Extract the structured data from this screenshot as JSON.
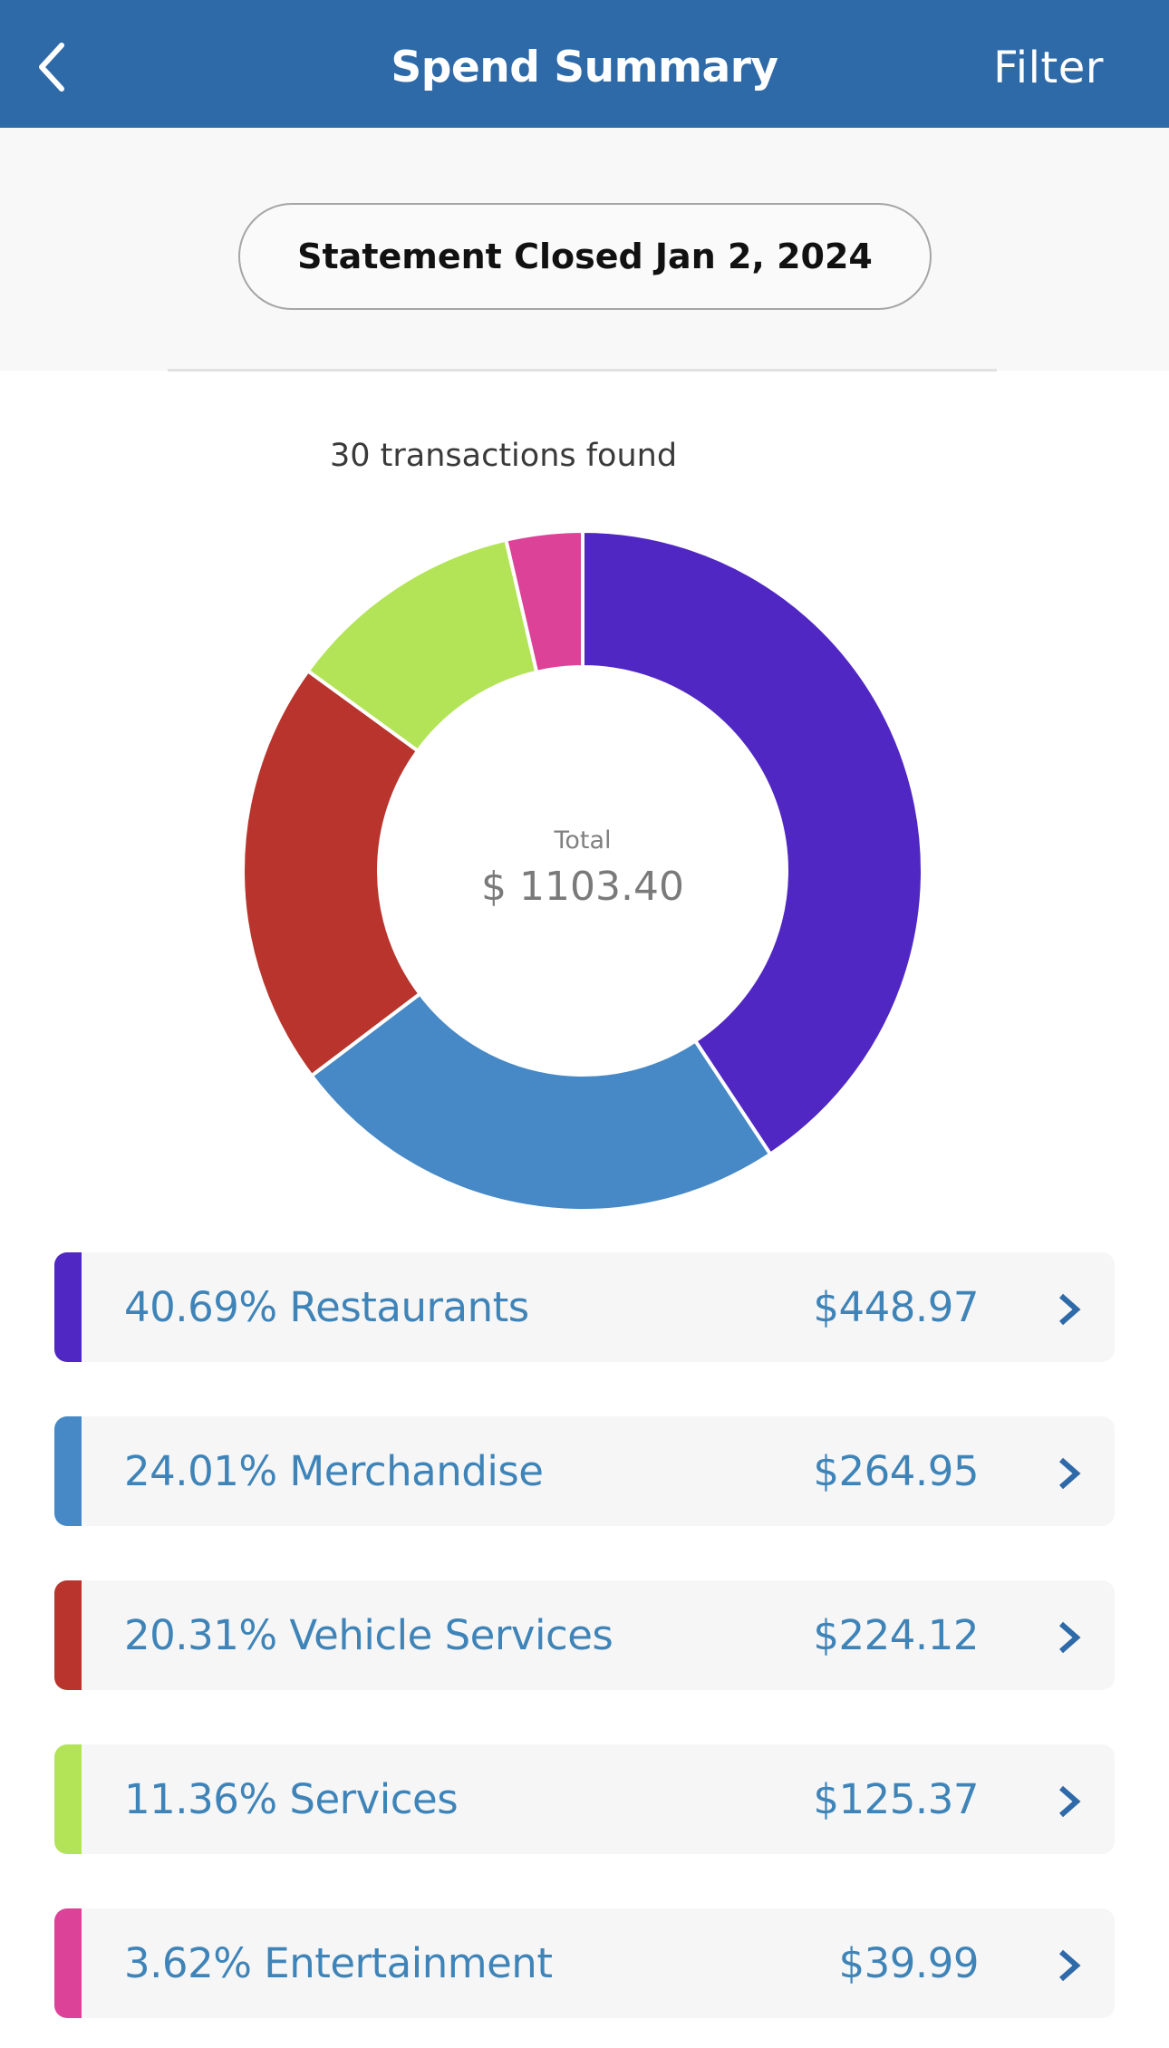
{
  "header": {
    "title": "Spend Summary",
    "back_icon": "chevron-left-icon",
    "filter_label": "Filter",
    "color": "#2f6aa8"
  },
  "statement": {
    "label": "Statement Closed Jan 2, 2024"
  },
  "summary": {
    "transactions_text": "30 transactions found",
    "total_label": "Total",
    "total_value": "$ 1103.40"
  },
  "categories": [
    {
      "percent": "40.69%",
      "name": "Restaurants",
      "label": "40.69% Restaurants",
      "amount": "$448.97",
      "color": "#5027c2",
      "icon": "chevron-right-icon"
    },
    {
      "percent": "24.01%",
      "name": "Merchandise",
      "label": "24.01% Merchandise",
      "amount": "$264.95",
      "color": "#4689c6",
      "icon": "chevron-right-icon"
    },
    {
      "percent": "20.31%",
      "name": "Vehicle Services",
      "label": "20.31% Vehicle Services",
      "amount": "$224.12",
      "color": "#b8342c",
      "icon": "chevron-right-icon"
    },
    {
      "percent": "11.36%",
      "name": "Services",
      "label": "11.36% Services",
      "amount": "$125.37",
      "color": "#b3e458",
      "icon": "chevron-right-icon"
    },
    {
      "percent": "3.62%",
      "name": "Entertainment",
      "label": "3.62% Entertainment",
      "amount": "$39.99",
      "color": "#dc4298",
      "icon": "chevron-right-icon"
    }
  ],
  "chart_data": {
    "type": "pie",
    "variant": "donut",
    "title": "",
    "center_label": "Total",
    "center_value": "$ 1103.40",
    "total": 1103.4,
    "categories": [
      "Restaurants",
      "Merchandise",
      "Vehicle Services",
      "Services",
      "Entertainment"
    ],
    "values": [
      448.97,
      264.95,
      224.12,
      125.37,
      39.99
    ],
    "percentages": [
      40.69,
      24.01,
      20.31,
      11.36,
      3.62
    ],
    "colors": [
      "#5027c2",
      "#4689c6",
      "#b8342c",
      "#b3e458",
      "#dc4298"
    ],
    "start_angle": "top (12 o'clock)",
    "direction": "clockwise",
    "legend": "list below chart"
  }
}
